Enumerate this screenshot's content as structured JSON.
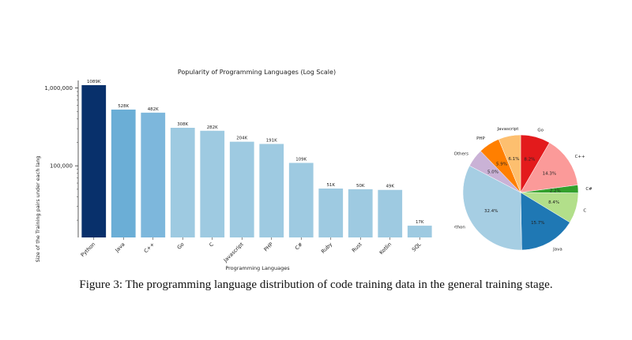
{
  "figure": {
    "caption": "Figure 3: The programming language distribution of code training data in the general training stage."
  },
  "chart_data": [
    {
      "type": "bar",
      "title": "Popularity of Programming Languages (Log Scale)",
      "xlabel": "Programming Languages",
      "ylabel": "Size of the Training pairs under each lang",
      "yscale": "log",
      "ylim": [
        12000,
        1250000
      ],
      "yticks": [
        100000,
        1000000
      ],
      "ytick_labels": [
        "100,000",
        "1,000,000"
      ],
      "categories": [
        "Python",
        "Java",
        "C++",
        "Go",
        "C",
        "Javascript",
        "PHP",
        "C#",
        "Ruby",
        "Rust",
        "Kotlin",
        "SQL"
      ],
      "values": [
        1089000,
        528000,
        482000,
        308000,
        282000,
        204000,
        191000,
        109000,
        51000,
        50000,
        49000,
        17000
      ],
      "data_labels": [
        "1089K",
        "528K",
        "482K",
        "308K",
        "282K",
        "204K",
        "191K",
        "109K",
        "51K",
        "50K",
        "49K",
        "17K"
      ],
      "colors": [
        "#08306b",
        "#6baed6",
        "#7db7dc",
        "#9ecae1",
        "#9ecae1",
        "#9ecae1",
        "#9ecae1",
        "#9ecae1",
        "#9ecae1",
        "#9ecae1",
        "#9ecae1",
        "#9ecae1"
      ],
      "grid": false
    },
    {
      "type": "pie",
      "labels": [
        "Go",
        "C++",
        "C#",
        "C",
        "Java",
        "Python",
        "Others",
        "PHP",
        "Javascript"
      ],
      "values": [
        8.2,
        14.3,
        2.2,
        8.4,
        15.7,
        32.4,
        5.0,
        5.9,
        6.1
      ],
      "value_labels": [
        "8.2%",
        "14.3%",
        "2.2%",
        "8.4%",
        "15.7%",
        "32.4%",
        "5.0%",
        "5.9%",
        "6.1%"
      ],
      "display_labels": [
        "Go",
        "C++",
        "C#",
        "C",
        "Java",
        "Python",
        "Others",
        "PHP",
        "Javascript"
      ],
      "colors": [
        "#e31a1c",
        "#fb9a99",
        "#33a02c",
        "#b2df8a",
        "#1f78b4",
        "#a6cee3",
        "#cab2d6",
        "#ff7f00",
        "#fdbf6f"
      ]
    }
  ]
}
